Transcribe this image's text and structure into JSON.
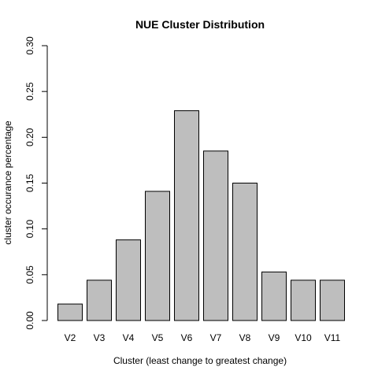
{
  "chart_data": {
    "type": "bar",
    "title": "NUE Cluster Distribution",
    "xlabel": "Cluster (least change to greatest change)",
    "ylabel": "cluster occurance percentage",
    "categories": [
      "V2",
      "V3",
      "V4",
      "V5",
      "V6",
      "V7",
      "V8",
      "V9",
      "V10",
      "V11"
    ],
    "values": [
      0.018,
      0.044,
      0.088,
      0.141,
      0.229,
      0.185,
      0.15,
      0.053,
      0.044,
      0.044
    ],
    "ylim": [
      0,
      0.3
    ],
    "yticks": [
      0.0,
      0.05,
      0.1,
      0.15,
      0.2,
      0.25,
      0.3
    ],
    "ytick_labels": [
      "0.00",
      "0.05",
      "0.10",
      "0.15",
      "0.20",
      "0.25",
      "0.30"
    ],
    "bar_color": "#bebebe",
    "grid": false,
    "legend": "none"
  }
}
